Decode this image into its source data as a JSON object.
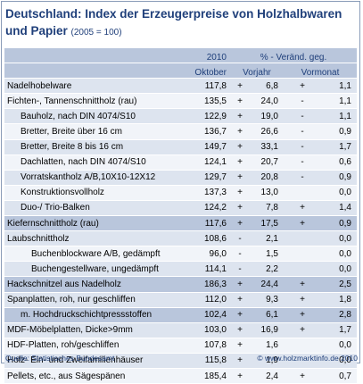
{
  "title": {
    "main": "Deutschland: Index der Erzeugerpreise von Holzhalbwaren und Papier",
    "note": "(2005 = 100)"
  },
  "header": {
    "year": "2010",
    "month": "Oktober",
    "change": "% - Veränd. geg.",
    "prev_year": "Vorjahr",
    "prev_month": "Vormonat"
  },
  "rows": [
    {
      "label": "Nadelhobelware",
      "indent": 0,
      "value": "117,8",
      "y_sign": "+",
      "y_val": "6,8",
      "m_sign": "+",
      "m_val": "1,1",
      "shade": "even"
    },
    {
      "label": "Fichten-, Tannenschnittholz (rau)",
      "indent": 0,
      "value": "135,5",
      "y_sign": "+",
      "y_val": "24,0",
      "m_sign": "-",
      "m_val": "1,1",
      "shade": "odd"
    },
    {
      "label": "Bauholz, nach DIN 4074/S10",
      "indent": 1,
      "value": "122,9",
      "y_sign": "+",
      "y_val": "19,0",
      "m_sign": "-",
      "m_val": "1,1",
      "shade": "even"
    },
    {
      "label": "Bretter, Breite über 16 cm",
      "indent": 1,
      "value": "136,7",
      "y_sign": "+",
      "y_val": "26,6",
      "m_sign": "-",
      "m_val": "0,9",
      "shade": "odd"
    },
    {
      "label": "Bretter, Breite 8 bis 16 cm",
      "indent": 1,
      "value": "149,7",
      "y_sign": "+",
      "y_val": "33,1",
      "m_sign": "-",
      "m_val": "1,7",
      "shade": "even"
    },
    {
      "label": "Dachlatten, nach DIN 4074/S10",
      "indent": 1,
      "value": "124,1",
      "y_sign": "+",
      "y_val": "20,7",
      "m_sign": "-",
      "m_val": "0,6",
      "shade": "odd"
    },
    {
      "label": "Vorratskantholz A/B,10X10-12X12",
      "indent": 1,
      "value": "129,7",
      "y_sign": "+",
      "y_val": "20,8",
      "m_sign": "-",
      "m_val": "0,9",
      "shade": "even"
    },
    {
      "label": "Konstruktionsvollholz",
      "indent": 1,
      "value": "137,3",
      "y_sign": "+",
      "y_val": "13,0",
      "m_sign": "",
      "m_val": "0,0",
      "shade": "odd"
    },
    {
      "label": "Duo-/ Trio-Balken",
      "indent": 1,
      "value": "124,2",
      "y_sign": "+",
      "y_val": "7,8",
      "m_sign": "+",
      "m_val": "1,4",
      "shade": "even"
    },
    {
      "label": "Kiefernschnittholz (rau)",
      "indent": 0,
      "value": "117,6",
      "y_sign": "+",
      "y_val": "17,5",
      "m_sign": "+",
      "m_val": "0,9",
      "shade": "hl"
    },
    {
      "label": "Laubschnittholz",
      "indent": 0,
      "value": "108,6",
      "y_sign": "-",
      "y_val": "2,1",
      "m_sign": "",
      "m_val": "0,0",
      "shade": "even"
    },
    {
      "label": "Buchenblockware A/B, gedämpft",
      "indent": 2,
      "value": "96,0",
      "y_sign": "-",
      "y_val": "1,5",
      "m_sign": "",
      "m_val": "0,0",
      "shade": "odd"
    },
    {
      "label": "Buchengestellware, ungedämpft",
      "indent": 2,
      "value": "114,1",
      "y_sign": "-",
      "y_val": "2,2",
      "m_sign": "",
      "m_val": "0,0",
      "shade": "even"
    },
    {
      "label": "Hackschnitzel aus Nadelholz",
      "indent": 0,
      "value": "186,3",
      "y_sign": "+",
      "y_val": "24,4",
      "m_sign": "+",
      "m_val": "2,5",
      "shade": "hl"
    },
    {
      "label": "Spanplatten, roh, nur geschliffen",
      "indent": 0,
      "value": "112,0",
      "y_sign": "+",
      "y_val": "9,3",
      "m_sign": "+",
      "m_val": "1,8",
      "shade": "even"
    },
    {
      "label": "m. Hochdruckschichtpressstoffen",
      "indent": 1,
      "value": "102,4",
      "y_sign": "+",
      "y_val": "6,1",
      "m_sign": "+",
      "m_val": "2,8",
      "shade": "hl"
    },
    {
      "label": "MDF-Möbelplatten, Dicke>9mm",
      "indent": 0,
      "value": "103,0",
      "y_sign": "+",
      "y_val": "16,9",
      "m_sign": "+",
      "m_val": "1,7",
      "shade": "even"
    },
    {
      "label": "HDF-Platten, roh/geschliffen",
      "indent": 0,
      "value": "107,8",
      "y_sign": "+",
      "y_val": "1,6",
      "m_sign": "",
      "m_val": "0,0",
      "shade": "odd"
    },
    {
      "label": "Holz- Ein- und Zweifamilienhäuser",
      "indent": 0,
      "value": "115,8",
      "y_sign": "+",
      "y_val": "1,9",
      "m_sign": "",
      "m_val": "0,0",
      "shade": "even"
    },
    {
      "label": "Pellets, etc., aus Sägespänen",
      "indent": 0,
      "value": "185,4",
      "y_sign": "+",
      "y_val": "2,4",
      "m_sign": "+",
      "m_val": "0,7",
      "shade": "odd"
    }
  ],
  "footer": {
    "source": "Quelle: Statistisches Bundesamt",
    "copyright": "© www.holzmarktinfo.de 2010"
  }
}
